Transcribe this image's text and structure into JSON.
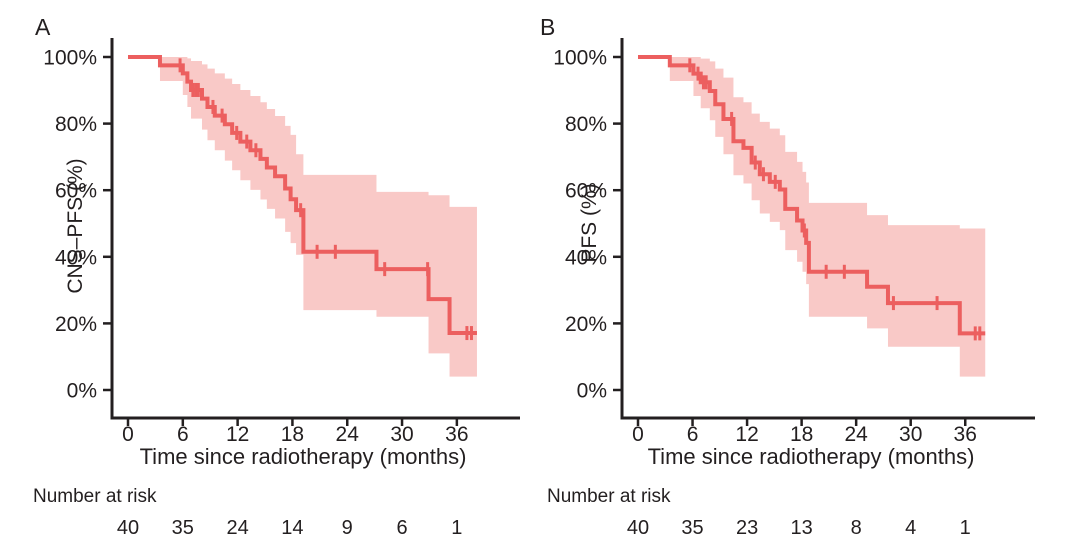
{
  "figure": {
    "background": "#ffffff",
    "panel_count": 2
  },
  "colors": {
    "curve": "#ec5f5f",
    "confidence_band": "#f9c9c7",
    "axis": "#231f20",
    "text": "#231f20"
  },
  "chart_data": [
    {
      "panel_label": "A",
      "type": "line",
      "subtype": "kaplan-meier-step",
      "xlabel": "Time since radiotherapy (months)",
      "ylabel": "CNS–PFS (%)",
      "risk_label": "Number at risk",
      "xlim": [
        0,
        43
      ],
      "ylim": [
        0,
        100
      ],
      "grid": false,
      "legend": false,
      "xticks": [
        0,
        6,
        12,
        18,
        24,
        30,
        36
      ],
      "ytick_values": [
        0,
        20,
        40,
        60,
        80,
        100
      ],
      "ytick_labels": [
        "0%",
        "20%",
        "40%",
        "60%",
        "80%",
        "100%"
      ],
      "end_time": 38.2,
      "steps_format": [
        "time_months",
        "survival_pct",
        "ci_lower_pct",
        "ci_upper_pct"
      ],
      "steps": [
        [
          0,
          100,
          100,
          100
        ],
        [
          3.5,
          97.5,
          92.8,
          100
        ],
        [
          6.0,
          95.1,
          88.6,
          100
        ],
        [
          6.5,
          92.6,
          85.0,
          99.6
        ],
        [
          6.9,
          90.1,
          81.5,
          98.8
        ],
        [
          8.1,
          87.5,
          78.2,
          97.8
        ],
        [
          8.7,
          85.0,
          75.0,
          96.5
        ],
        [
          9.5,
          82.4,
          72.0,
          95.1
        ],
        [
          10.6,
          79.8,
          68.9,
          93.5
        ],
        [
          11.4,
          77.2,
          66.0,
          91.9
        ],
        [
          12.3,
          74.6,
          63.0,
          90.1
        ],
        [
          13.4,
          72.0,
          60.1,
          88.3
        ],
        [
          14.5,
          69.4,
          57.2,
          86.4
        ],
        [
          15.2,
          66.8,
          54.4,
          84.4
        ],
        [
          16.1,
          64.2,
          51.5,
          82.3
        ],
        [
          17.2,
          60.5,
          47.5,
          79.3
        ],
        [
          17.8,
          57.3,
          44.1,
          76.6
        ],
        [
          18.4,
          54.0,
          40.6,
          70.8
        ],
        [
          19.2,
          41.5,
          24.0,
          64.6
        ],
        [
          27.2,
          36.3,
          22.0,
          59.5
        ],
        [
          32.9,
          27.3,
          11.0,
          58.5
        ],
        [
          35.2,
          17.1,
          4.0,
          55.0
        ]
      ],
      "censor_marks": [
        [
          5.7,
          97.5
        ],
        [
          7.1,
          90.1
        ],
        [
          7.4,
          90.1
        ],
        [
          7.7,
          90.1
        ],
        [
          9.3,
          85.0
        ],
        [
          10.3,
          82.4
        ],
        [
          11.9,
          77.2
        ],
        [
          13.0,
          74.6
        ],
        [
          14.0,
          72.0
        ],
        [
          18.9,
          54.0
        ],
        [
          20.7,
          41.5
        ],
        [
          22.7,
          41.5
        ],
        [
          28.1,
          36.3
        ],
        [
          32.8,
          36.3
        ],
        [
          37.1,
          17.1
        ],
        [
          37.6,
          17.1
        ]
      ],
      "number_at_risk": {
        "times": [
          0,
          6,
          12,
          18,
          24,
          30,
          36
        ],
        "values": [
          40,
          35,
          24,
          14,
          9,
          6,
          1
        ]
      }
    },
    {
      "panel_label": "B",
      "type": "line",
      "subtype": "kaplan-meier-step",
      "xlabel": "Time since radiotherapy (months)",
      "ylabel": "PFS (%)",
      "risk_label": "Number at risk",
      "xlim": [
        0,
        43
      ],
      "ylim": [
        0,
        100
      ],
      "grid": false,
      "legend": false,
      "xticks": [
        0,
        6,
        12,
        18,
        24,
        30,
        36
      ],
      "ytick_values": [
        0,
        20,
        40,
        60,
        80,
        100
      ],
      "ytick_labels": [
        "0%",
        "20%",
        "40%",
        "60%",
        "80%",
        "100%"
      ],
      "end_time": 38.2,
      "steps_format": [
        "time_months",
        "survival_pct",
        "ci_lower_pct",
        "ci_upper_pct"
      ],
      "steps": [
        [
          0,
          100,
          100,
          100
        ],
        [
          3.5,
          97.5,
          92.8,
          100
        ],
        [
          6.1,
          95.0,
          88.3,
          100
        ],
        [
          6.9,
          92.4,
          84.6,
          99.5
        ],
        [
          7.9,
          89.8,
          81.0,
          98.7
        ],
        [
          8.5,
          85.8,
          76.0,
          96.5
        ],
        [
          9.4,
          81.4,
          70.8,
          93.8
        ],
        [
          10.5,
          74.7,
          64.5,
          87.9
        ],
        [
          11.6,
          72.7,
          62.0,
          86.4
        ],
        [
          12.5,
          68.3,
          57.0,
          83.0
        ],
        [
          13.4,
          64.8,
          53.0,
          80.5
        ],
        [
          14.5,
          62.5,
          50.5,
          78.5
        ],
        [
          15.6,
          60.2,
          48.0,
          76.5
        ],
        [
          16.2,
          54.4,
          42.0,
          71.5
        ],
        [
          17.5,
          50.9,
          38.5,
          68.5
        ],
        [
          18.1,
          47.9,
          35.5,
          65.5
        ],
        [
          18.5,
          44.2,
          31.8,
          62.3
        ],
        [
          18.8,
          35.5,
          22.0,
          56.2
        ],
        [
          25.2,
          31.0,
          18.5,
          52.5
        ],
        [
          27.5,
          26.1,
          13.0,
          49.5
        ],
        [
          35.4,
          17.0,
          4.0,
          48.5
        ]
      ],
      "censor_marks": [
        [
          5.7,
          97.5
        ],
        [
          6.6,
          95.0
        ],
        [
          7.2,
          92.4
        ],
        [
          7.5,
          92.4
        ],
        [
          10.3,
          81.4
        ],
        [
          12.9,
          68.3
        ],
        [
          13.8,
          64.8
        ],
        [
          15.1,
          62.5
        ],
        [
          18.3,
          47.9
        ],
        [
          20.7,
          35.5
        ],
        [
          22.7,
          35.5
        ],
        [
          28.1,
          26.1
        ],
        [
          32.9,
          26.1
        ],
        [
          37.1,
          17.0
        ],
        [
          37.6,
          17.0
        ]
      ],
      "number_at_risk": {
        "times": [
          0,
          6,
          12,
          18,
          24,
          30,
          36
        ],
        "values": [
          40,
          35,
          23,
          13,
          8,
          4,
          1
        ]
      }
    }
  ]
}
